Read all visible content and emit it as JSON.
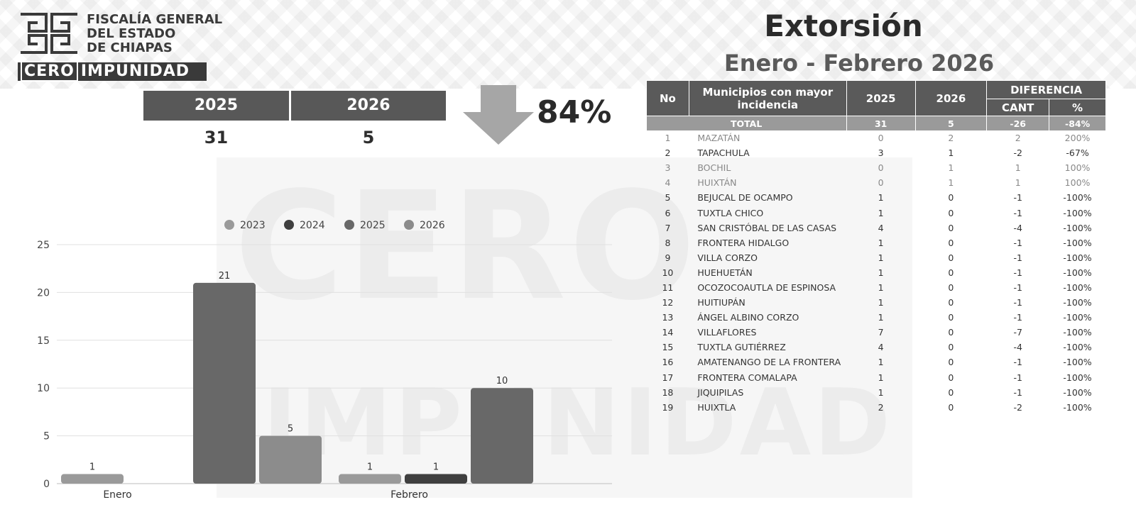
{
  "logo": {
    "line1": "FISCALÍA GENERAL",
    "line2": "DEL ESTADO",
    "line3": "DE CHIAPAS",
    "banner_cero": "CERO",
    "banner_impunidad": "IMPUNIDAD"
  },
  "watermark": {
    "top": "CERO",
    "bottom": "IMPUNIDAD"
  },
  "summary": {
    "year_a": "2025",
    "year_b": "2026",
    "value_a": "31",
    "value_b": "5",
    "change_percent": "84%",
    "trend_icon": "down-arrow-icon"
  },
  "title": {
    "main": "Extorsión",
    "sub": "Enero - Febrero 2026"
  },
  "chart_data": {
    "type": "bar",
    "categories": [
      "Enero",
      "Febrero"
    ],
    "series": [
      {
        "name": "2023",
        "color": "#9a9a9a",
        "values": [
          1,
          1
        ]
      },
      {
        "name": "2024",
        "color": "#3f3f3f",
        "values": [
          0,
          1
        ]
      },
      {
        "name": "2025",
        "color": "#686868",
        "values": [
          21,
          10
        ]
      },
      {
        "name": "2026",
        "color": "#8c8c8c",
        "values": [
          5,
          0
        ]
      }
    ],
    "data_labels": [
      [
        "1",
        null,
        "21",
        "5"
      ],
      [
        "1",
        "1",
        "10",
        null
      ]
    ],
    "yticks": [
      0,
      5,
      10,
      15,
      20,
      25
    ],
    "ylim": [
      0,
      25
    ],
    "grid": true,
    "legend": "top"
  },
  "table": {
    "headers": {
      "no": "No",
      "municipio": "Municipios con mayor incidencia",
      "y2025": "2025",
      "y2026": "2026",
      "diferencia": "DIFERENCIA",
      "cant": "CANT",
      "pct": "%"
    },
    "total": {
      "label": "TOTAL",
      "y2025": "31",
      "y2026": "5",
      "cant": "-26",
      "pct": "-84%"
    },
    "rows": [
      {
        "no": "1",
        "municipio": "MAZATÁN",
        "y2025": "0",
        "y2026": "2",
        "cant": "2",
        "pct": "200%"
      },
      {
        "no": "2",
        "municipio": "TAPACHULA",
        "y2025": "3",
        "y2026": "1",
        "cant": "-2",
        "pct": "-67%"
      },
      {
        "no": "3",
        "municipio": "BOCHIL",
        "y2025": "0",
        "y2026": "1",
        "cant": "1",
        "pct": "100%"
      },
      {
        "no": "4",
        "municipio": "HUIXTÁN",
        "y2025": "0",
        "y2026": "1",
        "cant": "1",
        "pct": "100%"
      },
      {
        "no": "5",
        "municipio": "BEJUCAL DE OCAMPO",
        "y2025": "1",
        "y2026": "0",
        "cant": "-1",
        "pct": "-100%"
      },
      {
        "no": "6",
        "municipio": "TUXTLA CHICO",
        "y2025": "1",
        "y2026": "0",
        "cant": "-1",
        "pct": "-100%"
      },
      {
        "no": "7",
        "municipio": "SAN CRISTÓBAL DE LAS CASAS",
        "y2025": "4",
        "y2026": "0",
        "cant": "-4",
        "pct": "-100%"
      },
      {
        "no": "8",
        "municipio": "FRONTERA HIDALGO",
        "y2025": "1",
        "y2026": "0",
        "cant": "-1",
        "pct": "-100%"
      },
      {
        "no": "9",
        "municipio": "VILLA CORZO",
        "y2025": "1",
        "y2026": "0",
        "cant": "-1",
        "pct": "-100%"
      },
      {
        "no": "10",
        "municipio": "HUEHUETÁN",
        "y2025": "1",
        "y2026": "0",
        "cant": "-1",
        "pct": "-100%"
      },
      {
        "no": "11",
        "municipio": "OCOZOCOAUTLA DE ESPINOSA",
        "y2025": "1",
        "y2026": "0",
        "cant": "-1",
        "pct": "-100%"
      },
      {
        "no": "12",
        "municipio": "HUITIUPÁN",
        "y2025": "1",
        "y2026": "0",
        "cant": "-1",
        "pct": "-100%"
      },
      {
        "no": "13",
        "municipio": "ÁNGEL ALBINO CORZO",
        "y2025": "1",
        "y2026": "0",
        "cant": "-1",
        "pct": "-100%"
      },
      {
        "no": "14",
        "municipio": "VILLAFLORES",
        "y2025": "7",
        "y2026": "0",
        "cant": "-7",
        "pct": "-100%"
      },
      {
        "no": "15",
        "municipio": "TUXTLA GUTIÉRREZ",
        "y2025": "4",
        "y2026": "0",
        "cant": "-4",
        "pct": "-100%"
      },
      {
        "no": "16",
        "municipio": "AMATENANGO DE LA FRONTERA",
        "y2025": "1",
        "y2026": "0",
        "cant": "-1",
        "pct": "-100%"
      },
      {
        "no": "17",
        "municipio": "FRONTERA COMALAPA",
        "y2025": "1",
        "y2026": "0",
        "cant": "-1",
        "pct": "-100%"
      },
      {
        "no": "18",
        "municipio": "JIQUIPILAS",
        "y2025": "1",
        "y2026": "0",
        "cant": "-1",
        "pct": "-100%"
      },
      {
        "no": "19",
        "municipio": "HUIXTLA",
        "y2025": "2",
        "y2026": "0",
        "cant": "-2",
        "pct": "-100%"
      }
    ]
  }
}
